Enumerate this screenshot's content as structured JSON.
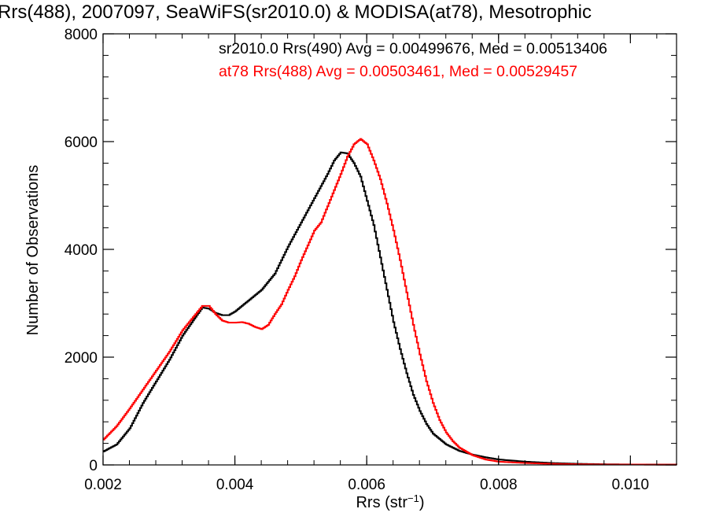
{
  "page": {
    "title": "Rrs(488), 2007097, SeaWiFS(sr2010.0) & MODISA(at78), Mesotrophic"
  },
  "chart_data": {
    "type": "line",
    "title": "Rrs(488), 2007097, SeaWiFS(sr2010.0) & MODISA(at78), Mesotrophic",
    "xlabel": "Rrs (str",
    "xlabel_sup": "−1",
    "xlabel_close": ")",
    "ylabel": "Number of Observations",
    "xlim": [
      0.002,
      0.0107
    ],
    "ylim": [
      0,
      8000
    ],
    "x_ticks": [
      0.002,
      0.004,
      0.006,
      0.008,
      0.01
    ],
    "x_tick_labels": [
      "0.002",
      "0.004",
      "0.006",
      "0.008",
      "0.010"
    ],
    "y_ticks": [
      0,
      2000,
      4000,
      6000,
      8000
    ],
    "y_tick_labels": [
      "0",
      "2000",
      "4000",
      "6000",
      "8000"
    ],
    "grid": false,
    "legend_position": "top",
    "series": [
      {
        "name": "sr2010.0 Rrs(490) Avg = 0.00499676, Med = 0.00513406",
        "color": "#000000",
        "points": [
          [
            0.002,
            250
          ],
          [
            0.0022,
            380
          ],
          [
            0.0024,
            680
          ],
          [
            0.0026,
            1150
          ],
          [
            0.0028,
            1550
          ],
          [
            0.003,
            1950
          ],
          [
            0.0032,
            2400
          ],
          [
            0.0034,
            2750
          ],
          [
            0.0035,
            2920
          ],
          [
            0.0036,
            2900
          ],
          [
            0.0037,
            2820
          ],
          [
            0.0038,
            2780
          ],
          [
            0.0039,
            2780
          ],
          [
            0.004,
            2850
          ],
          [
            0.0042,
            3050
          ],
          [
            0.0044,
            3250
          ],
          [
            0.0046,
            3550
          ],
          [
            0.0048,
            4050
          ],
          [
            0.005,
            4500
          ],
          [
            0.0052,
            4950
          ],
          [
            0.0054,
            5400
          ],
          [
            0.0055,
            5650
          ],
          [
            0.0056,
            5800
          ],
          [
            0.0057,
            5780
          ],
          [
            0.0058,
            5600
          ],
          [
            0.0059,
            5350
          ],
          [
            0.006,
            4900
          ],
          [
            0.0061,
            4450
          ],
          [
            0.0062,
            3850
          ],
          [
            0.0063,
            3250
          ],
          [
            0.0064,
            2650
          ],
          [
            0.0065,
            2150
          ],
          [
            0.0066,
            1700
          ],
          [
            0.0067,
            1300
          ],
          [
            0.0068,
            1000
          ],
          [
            0.0069,
            760
          ],
          [
            0.007,
            580
          ],
          [
            0.0072,
            380
          ],
          [
            0.0074,
            260
          ],
          [
            0.0076,
            190
          ],
          [
            0.0078,
            140
          ],
          [
            0.008,
            100
          ],
          [
            0.0084,
            60
          ],
          [
            0.0088,
            35
          ],
          [
            0.0092,
            20
          ],
          [
            0.0096,
            12
          ],
          [
            0.01,
            8
          ],
          [
            0.0107,
            5
          ]
        ]
      },
      {
        "name": "at78 Rrs(488) Avg = 0.00503461, Med = 0.00529457",
        "color": "#ff0000",
        "points": [
          [
            0.002,
            470
          ],
          [
            0.0022,
            720
          ],
          [
            0.0024,
            1050
          ],
          [
            0.0026,
            1400
          ],
          [
            0.0028,
            1750
          ],
          [
            0.003,
            2100
          ],
          [
            0.0032,
            2500
          ],
          [
            0.0034,
            2800
          ],
          [
            0.0035,
            2950
          ],
          [
            0.0036,
            2950
          ],
          [
            0.0037,
            2800
          ],
          [
            0.0038,
            2680
          ],
          [
            0.0039,
            2640
          ],
          [
            0.004,
            2640
          ],
          [
            0.0041,
            2650
          ],
          [
            0.0042,
            2620
          ],
          [
            0.0043,
            2560
          ],
          [
            0.0044,
            2520
          ],
          [
            0.0045,
            2600
          ],
          [
            0.0046,
            2800
          ],
          [
            0.0047,
            2980
          ],
          [
            0.0048,
            3250
          ],
          [
            0.0049,
            3500
          ],
          [
            0.005,
            3800
          ],
          [
            0.0052,
            4350
          ],
          [
            0.0053,
            4500
          ],
          [
            0.0054,
            4800
          ],
          [
            0.0055,
            5100
          ],
          [
            0.0056,
            5400
          ],
          [
            0.0057,
            5720
          ],
          [
            0.0058,
            5950
          ],
          [
            0.0059,
            6050
          ],
          [
            0.006,
            5950
          ],
          [
            0.0061,
            5650
          ],
          [
            0.0062,
            5300
          ],
          [
            0.0063,
            4850
          ],
          [
            0.0064,
            4350
          ],
          [
            0.0065,
            3800
          ],
          [
            0.0066,
            3200
          ],
          [
            0.0067,
            2600
          ],
          [
            0.0068,
            2050
          ],
          [
            0.0069,
            1550
          ],
          [
            0.007,
            1150
          ],
          [
            0.0071,
            830
          ],
          [
            0.0072,
            600
          ],
          [
            0.0073,
            440
          ],
          [
            0.0074,
            320
          ],
          [
            0.0076,
            180
          ],
          [
            0.0078,
            100
          ],
          [
            0.008,
            60
          ],
          [
            0.0084,
            35
          ],
          [
            0.0088,
            20
          ],
          [
            0.0092,
            12
          ],
          [
            0.0096,
            8
          ],
          [
            0.0107,
            5
          ]
        ]
      }
    ]
  }
}
